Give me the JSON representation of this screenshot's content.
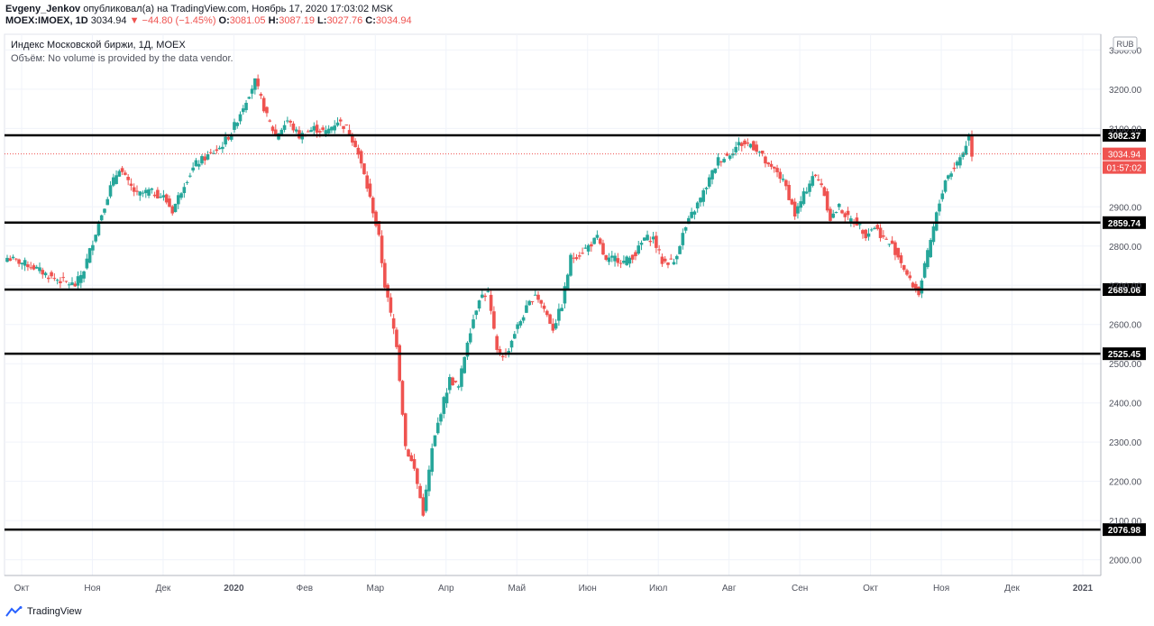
{
  "header": {
    "author": "Evgeny_Jenkov",
    "published": "опубликовал(а) на TradingView.com, Ноябрь 17, 2020 17:03:02 MSK",
    "symbol": "MOEX:IMOEX, 1D",
    "last": "3034.94",
    "change": "−44.80 (−1.45%)",
    "o_label": "O:",
    "o": "3081.05",
    "h_label": "H:",
    "h": "3087.19",
    "l_label": "L:",
    "l": "3027.76",
    "c_label": "C:",
    "c": "3034.94"
  },
  "legend": {
    "title": "Индекс Московской биржи, 1Д, MOEX",
    "volume": "Объём: No volume is provided by the data vendor."
  },
  "currency": "RUB",
  "price_badge": "3034.94",
  "countdown": "01:57:02",
  "footer": {
    "brand": "TradingView"
  },
  "colors": {
    "up": "#26a69a",
    "down": "#ef5350",
    "line": "#000000",
    "grid": "#f0f3fa"
  },
  "chart_data": {
    "type": "candlestick",
    "ylim": [
      1960,
      3340
    ],
    "yticks": [
      2000,
      2100,
      2200,
      2300,
      2400,
      2500,
      2600,
      2700,
      2800,
      2900,
      3000,
      3100,
      3200,
      3300
    ],
    "xlabels": [
      "Окт",
      "Ноя",
      "Дек",
      "2020",
      "Фев",
      "Мар",
      "Апр",
      "Май",
      "Июн",
      "Июл",
      "Авг",
      "Сен",
      "Окт",
      "Ноя",
      "Дек",
      "2021"
    ],
    "levels": [
      "3082.37",
      "2859.74",
      "2689.06",
      "2525.45",
      "2076.98"
    ],
    "last_price": 3034.94,
    "path": [
      [
        0,
        2770
      ],
      [
        8,
        2750
      ],
      [
        15,
        2720
      ],
      [
        23,
        2700
      ],
      [
        26,
        2740
      ],
      [
        31,
        2860
      ],
      [
        35,
        2950
      ],
      [
        38,
        3000
      ],
      [
        41,
        2960
      ],
      [
        44,
        2930
      ],
      [
        48,
        2940
      ],
      [
        53,
        2925
      ],
      [
        56,
        2890
      ],
      [
        60,
        2960
      ],
      [
        64,
        3010
      ],
      [
        68,
        3030
      ],
      [
        72,
        3050
      ],
      [
        76,
        3090
      ],
      [
        79,
        3140
      ],
      [
        82,
        3190
      ],
      [
        84,
        3220
      ],
      [
        88,
        3130
      ],
      [
        91,
        3080
      ],
      [
        95,
        3120
      ],
      [
        99,
        3080
      ],
      [
        104,
        3100
      ],
      [
        108,
        3090
      ],
      [
        112,
        3120
      ],
      [
        115,
        3100
      ],
      [
        118,
        3060
      ],
      [
        121,
        2980
      ],
      [
        124,
        2890
      ],
      [
        126,
        2820
      ],
      [
        128,
        2700
      ],
      [
        132,
        2550
      ],
      [
        135,
        2290
      ],
      [
        138,
        2230
      ],
      [
        141,
        2120
      ],
      [
        144,
        2280
      ],
      [
        147,
        2380
      ],
      [
        150,
        2460
      ],
      [
        153,
        2440
      ],
      [
        156,
        2560
      ],
      [
        160,
        2670
      ],
      [
        163,
        2680
      ],
      [
        166,
        2530
      ],
      [
        169,
        2520
      ],
      [
        172,
        2580
      ],
      [
        176,
        2640
      ],
      [
        179,
        2680
      ],
      [
        182,
        2640
      ],
      [
        185,
        2590
      ],
      [
        188,
        2650
      ],
      [
        191,
        2770
      ],
      [
        194,
        2780
      ],
      [
        197,
        2800
      ],
      [
        200,
        2820
      ],
      [
        203,
        2760
      ],
      [
        206,
        2770
      ],
      [
        209,
        2760
      ],
      [
        213,
        2780
      ],
      [
        216,
        2820
      ],
      [
        219,
        2820
      ],
      [
        222,
        2760
      ],
      [
        226,
        2760
      ],
      [
        229,
        2830
      ],
      [
        232,
        2880
      ],
      [
        235,
        2920
      ],
      [
        238,
        2970
      ],
      [
        241,
        3020
      ],
      [
        244,
        3030
      ],
      [
        248,
        3060
      ],
      [
        252,
        3060
      ],
      [
        255,
        3040
      ],
      [
        258,
        3000
      ],
      [
        261,
        2990
      ],
      [
        264,
        2950
      ],
      [
        267,
        2880
      ],
      [
        270,
        2930
      ],
      [
        273,
        2980
      ],
      [
        276,
        2960
      ],
      [
        279,
        2870
      ],
      [
        282,
        2900
      ],
      [
        285,
        2870
      ],
      [
        288,
        2860
      ],
      [
        291,
        2830
      ],
      [
        294,
        2850
      ],
      [
        297,
        2820
      ],
      [
        300,
        2800
      ],
      [
        303,
        2760
      ],
      [
        306,
        2710
      ],
      [
        309,
        2680
      ],
      [
        312,
        2780
      ],
      [
        315,
        2880
      ],
      [
        318,
        2970
      ],
      [
        321,
        3000
      ],
      [
        324,
        3040
      ],
      [
        326,
        3080
      ],
      [
        327,
        3035
      ]
    ]
  }
}
